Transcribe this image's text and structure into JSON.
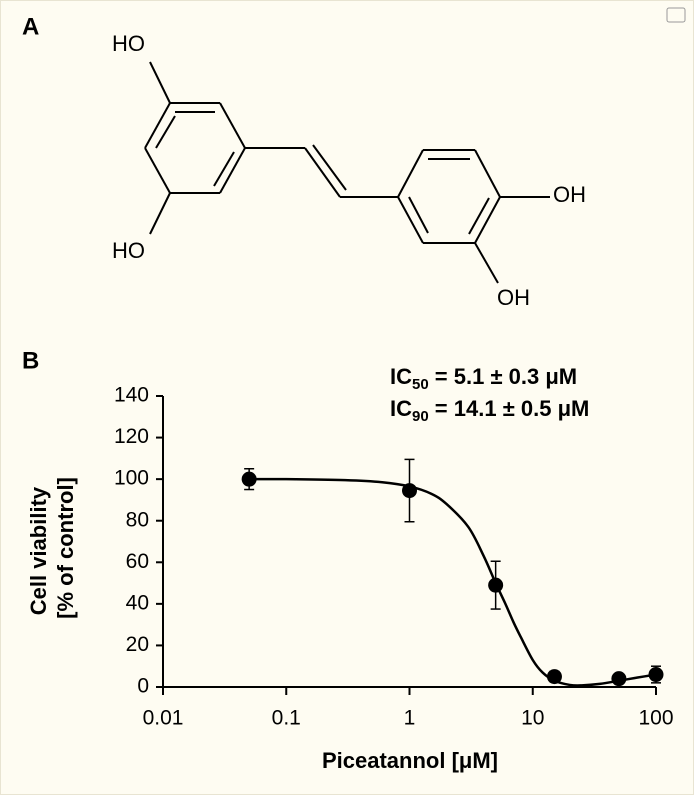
{
  "structure": {
    "label": "A",
    "groups": [
      "HO",
      "HO",
      "OH",
      "OH"
    ]
  },
  "chart_data": {
    "type": "scatter",
    "panel_label": "B",
    "annotations": [
      {
        "prefix": "IC",
        "subscript": "50",
        "text": " = 5.1 ± 0.3 μM"
      },
      {
        "prefix": "IC",
        "subscript": "90",
        "text": " = 14.1 ± 0.5 μM"
      }
    ],
    "x_label": "Piceatannol [μM]",
    "y_label": [
      "Cell viability",
      "[% of control]"
    ],
    "x_log": true,
    "xlim": [
      0.01,
      100
    ],
    "xticks": [
      0.01,
      0.1,
      1,
      10,
      100
    ],
    "ylim": [
      0,
      140
    ],
    "yticks": [
      0,
      20,
      40,
      60,
      80,
      100,
      120,
      140
    ],
    "series": [
      {
        "color": "#000000",
        "x": [
          0.05,
          1,
          5,
          15,
          50,
          100
        ],
        "values": [
          100,
          94.5,
          49,
          5,
          4,
          6
        ],
        "errors": [
          5,
          15,
          11.5,
          2.5,
          2,
          4
        ]
      }
    ],
    "fit": {
      "color": "#000000",
      "x": [
        0.05,
        0.1,
        0.3,
        0.6,
        1,
        1.5,
        2,
        3,
        4,
        5,
        6,
        7,
        8,
        10,
        12,
        15,
        20,
        25,
        35,
        50,
        70,
        100
      ],
      "values": [
        100,
        100,
        99.5,
        98.5,
        96.5,
        93,
        88,
        77,
        63,
        50,
        40,
        31,
        24,
        13,
        7,
        3,
        1,
        0.8,
        1.5,
        3,
        4.5,
        6
      ]
    }
  }
}
